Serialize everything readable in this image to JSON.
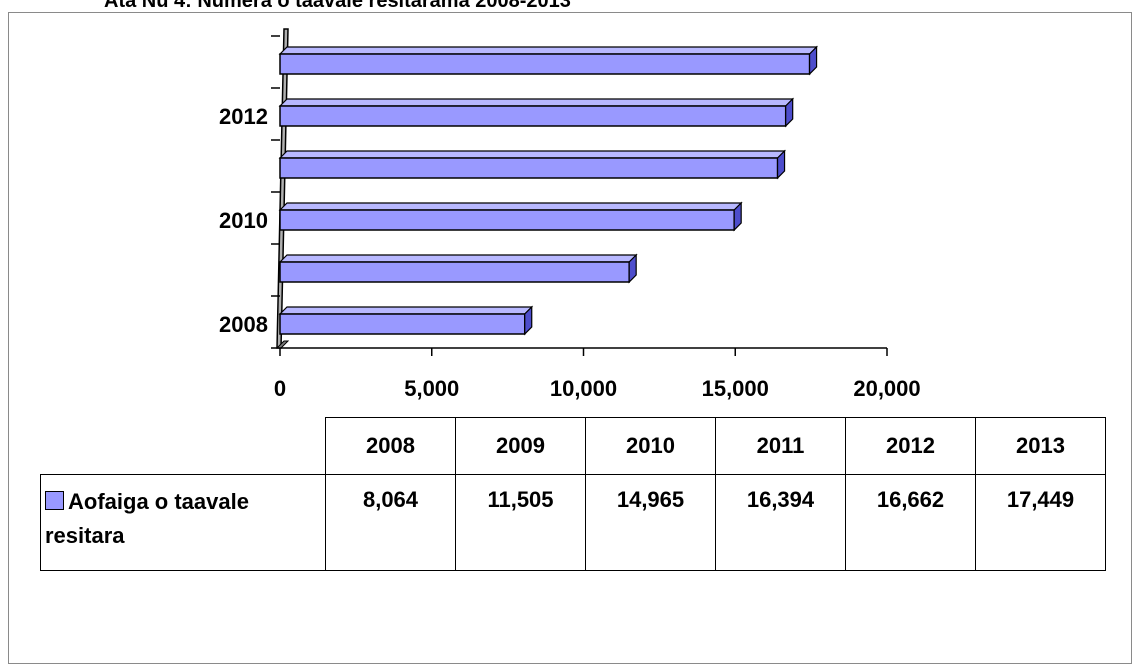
{
  "header": {
    "title": "Ata Nu 4: Numera o taavale resitarama 2008-2013"
  },
  "chart_data": {
    "type": "bar",
    "orientation": "horizontal",
    "style": "3d",
    "categories": [
      "2008",
      "2009",
      "2010",
      "2011",
      "2012",
      "2013"
    ],
    "y_tick_labels": [
      "2008",
      "2010",
      "2012"
    ],
    "series": [
      {
        "name": "Aofaiga o taavale resitara",
        "values": [
          8064,
          11505,
          14965,
          16394,
          16662,
          17449
        ],
        "color": "#9999ff"
      }
    ],
    "xlim": [
      0,
      20000
    ],
    "x_ticks": [
      0,
      5000,
      10000,
      15000,
      20000
    ],
    "x_tick_labels": [
      "0",
      "5,000",
      "10,000",
      "15,000",
      "20,000"
    ],
    "grid": false,
    "legend": "data-table"
  },
  "table": {
    "headers": [
      "2008",
      "2009",
      "2010",
      "2011",
      "2012",
      "2013"
    ],
    "row_label": "Aofaiga o taavale resitara",
    "values": [
      "8,064",
      "11,505",
      "14,965",
      "16,394",
      "16,662",
      "17,449"
    ]
  }
}
